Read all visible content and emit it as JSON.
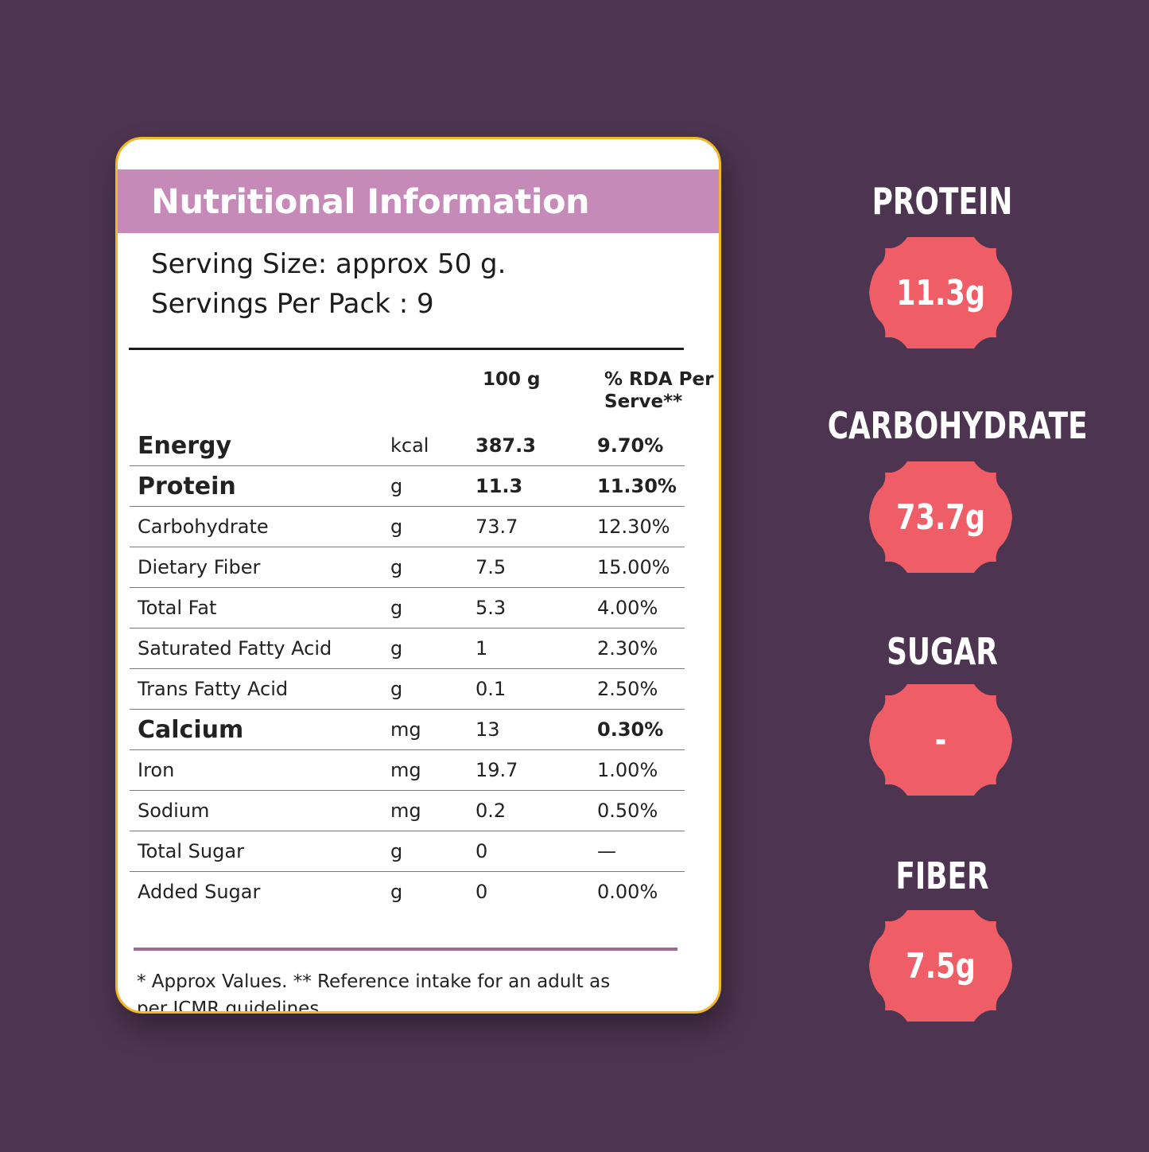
{
  "card": {
    "title": "Nutritional Information",
    "serving_size": "Serving Size: approx 50 g.",
    "servings_per_pack": "Servings Per Pack : 9",
    "col_per100": "100 g",
    "col_rda_line1": "% RDA Per",
    "col_rda_line2": "Serve**",
    "rows": [
      {
        "name": "Energy",
        "unit": "kcal",
        "value": "387.3",
        "rda": "9.70%"
      },
      {
        "name": "Protein",
        "unit": "g",
        "value": "11.3",
        "rda": "11.30%"
      },
      {
        "name": "Carbohydrate",
        "unit": "g",
        "value": "73.7",
        "rda": "12.30%"
      },
      {
        "name": "Dietary Fiber",
        "unit": "g",
        "value": "7.5",
        "rda": "15.00%"
      },
      {
        "name": "Total Fat",
        "unit": "g",
        "value": "5.3",
        "rda": "4.00%"
      },
      {
        "name": "Saturated Fatty Acid",
        "unit": "g",
        "value": "1",
        "rda": "2.30%"
      },
      {
        "name": "Trans Fatty Acid",
        "unit": "g",
        "value": "0.1",
        "rda": "2.50%"
      },
      {
        "name": "Calcium",
        "unit": "mg",
        "value": "13",
        "rda": "0.30%"
      },
      {
        "name": "Iron",
        "unit": "mg",
        "value": "19.7",
        "rda": "1.00%"
      },
      {
        "name": "Sodium",
        "unit": "mg",
        "value": "0.2",
        "rda": "0.50%"
      },
      {
        "name": "Total Sugar",
        "unit": "g",
        "value": "0",
        "rda": "—"
      },
      {
        "name": "Added Sugar",
        "unit": "g",
        "value": "0",
        "rda": "0.00%"
      }
    ],
    "footnote": "* Approx Values. ** Reference intake for an adult as per ICMR guidelines"
  },
  "highlights": [
    {
      "label": "PROTEIN",
      "value": "11.3g"
    },
    {
      "label": "CARBOHYDRATE",
      "value": "73.7g"
    },
    {
      "label": "SUGAR",
      "value": "-"
    },
    {
      "label": "FIBER",
      "value": "7.5g"
    }
  ],
  "colors": {
    "background": "#4d3450",
    "header": "#c68ab8",
    "card_border": "#f2b926",
    "badge": "#ef5d67"
  }
}
